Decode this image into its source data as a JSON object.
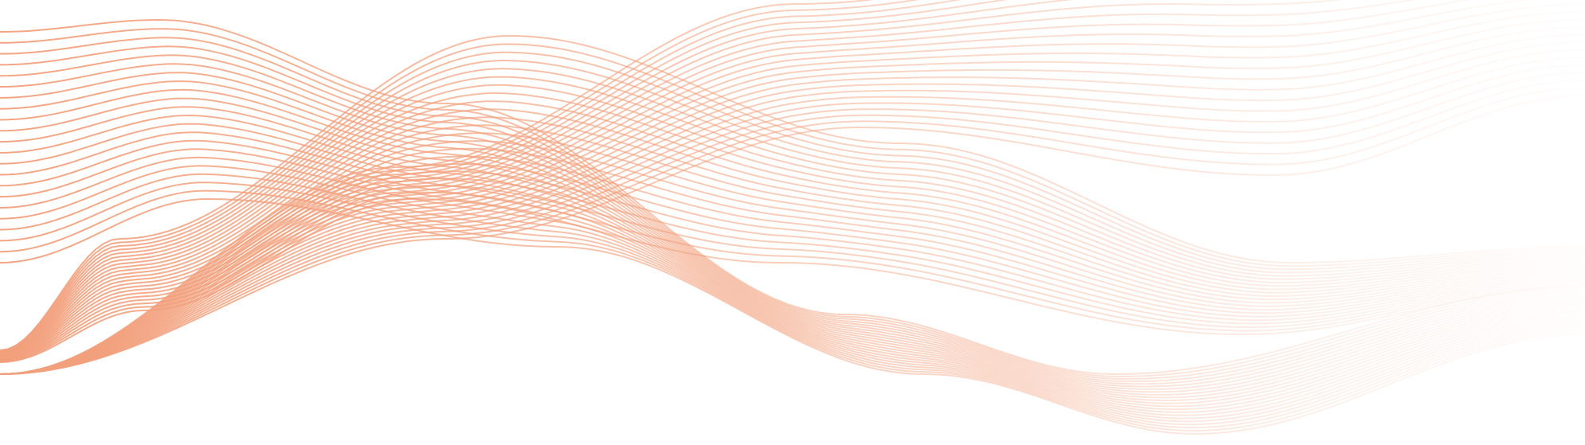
{
  "artwork": {
    "subject": "abstract-line-waves",
    "colors": {
      "background": "#ffffff",
      "stroke": "#f2a07c"
    },
    "families": [
      {
        "name": "family-a",
        "line_count": 22
      },
      {
        "name": "family-b",
        "line_count": 22
      },
      {
        "name": "family-c",
        "line_count": 22
      }
    ]
  }
}
